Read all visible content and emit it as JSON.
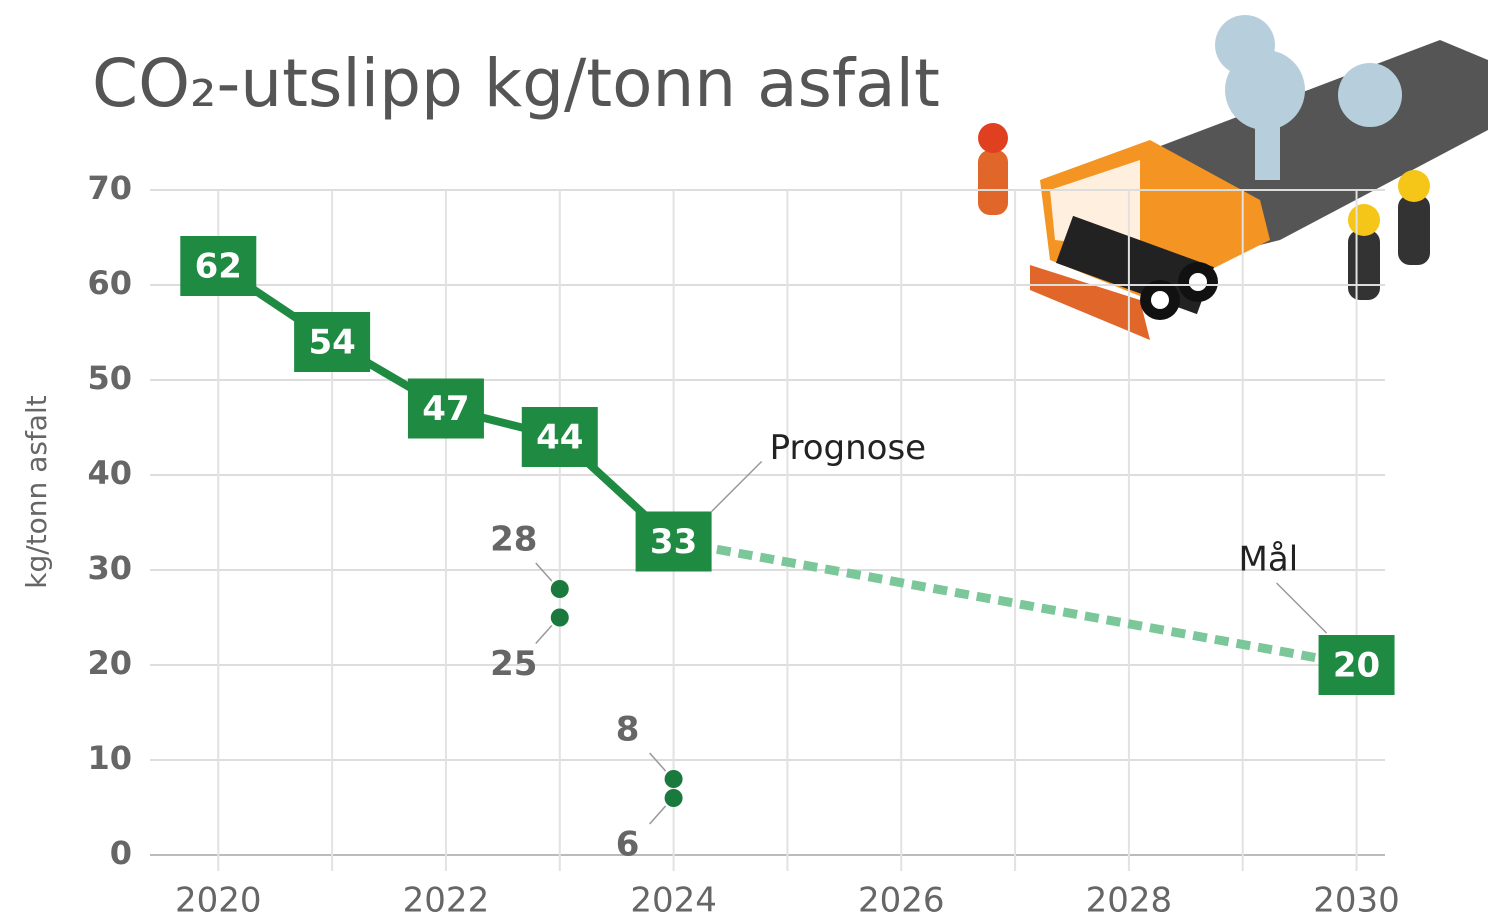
{
  "chart_data": {
    "type": "line",
    "title": "CO₂-utslipp kg/tonn asfalt",
    "ylabel": "kg/tonn asfalt",
    "xlim": [
      2019.4,
      2030.25
    ],
    "xticks": [
      2020,
      2022,
      2024,
      2026,
      2028,
      2030
    ],
    "minor_xticks": [
      2021,
      2023,
      2025,
      2027,
      2029
    ],
    "ylim": [
      0,
      70
    ],
    "yticks": [
      0,
      10,
      20,
      30,
      40,
      50,
      60,
      70
    ],
    "grid": true,
    "series": [
      {
        "color": "#1e8a42",
        "x": [
          2020,
          2021,
          2022,
          2023,
          2024
        ],
        "values": [
          62,
          54,
          47,
          44,
          33
        ],
        "style": "solid"
      },
      {
        "color": "#7cc79a",
        "x": [
          2024,
          2030
        ],
        "values": [
          33,
          20
        ],
        "style": "dashed"
      }
    ],
    "points": {
      "color": "#1a7a3e",
      "x": [
        2023,
        2023,
        2024,
        2024
      ],
      "values": [
        28,
        25,
        8,
        6
      ]
    },
    "annotations": [
      "Prognose",
      "Mål"
    ]
  }
}
